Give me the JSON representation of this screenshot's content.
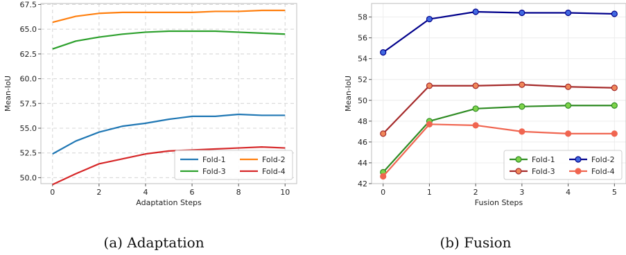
{
  "captions": [
    "(a) Adaptation",
    "(b) Fusion"
  ],
  "chart_data": [
    {
      "type": "line",
      "xlabel": "Adaptation Steps",
      "ylabel": "Mean-IoU",
      "x": [
        0,
        1,
        2,
        3,
        4,
        5,
        6,
        7,
        8,
        9,
        10
      ],
      "xlim": [
        -0.5,
        10.5
      ],
      "ylim": [
        49.4,
        67.6
      ],
      "xticks": [
        0,
        2,
        4,
        6,
        8,
        10
      ],
      "yticks": [
        50.0,
        52.5,
        55.0,
        57.5,
        60.0,
        62.5,
        65.0,
        67.5
      ],
      "xticklabels": [
        "0",
        "2",
        "4",
        "6",
        "8",
        "10"
      ],
      "yticklabels": [
        "50.0",
        "52.5",
        "55.0",
        "57.5",
        "60.0",
        "62.5",
        "65.0",
        "67.5"
      ],
      "grid": true,
      "grid_style": "dashed",
      "markers": false,
      "legend": "lower-right",
      "legend_columns": 2,
      "series": [
        {
          "name": "Fold-1",
          "color": "#1f77b4",
          "values": [
            52.4,
            53.7,
            54.6,
            55.2,
            55.5,
            55.9,
            56.2,
            56.2,
            56.4,
            56.3,
            56.3
          ]
        },
        {
          "name": "Fold-2",
          "color": "#ff7f0e",
          "values": [
            65.7,
            66.3,
            66.6,
            66.7,
            66.7,
            66.7,
            66.7,
            66.8,
            66.8,
            66.9,
            66.9
          ]
        },
        {
          "name": "Fold-3",
          "color": "#2ca02c",
          "values": [
            63.0,
            63.8,
            64.2,
            64.5,
            64.7,
            64.8,
            64.8,
            64.8,
            64.7,
            64.6,
            64.5
          ]
        },
        {
          "name": "Fold-4",
          "color": "#d62728",
          "values": [
            49.3,
            50.4,
            51.4,
            51.9,
            52.4,
            52.7,
            52.8,
            52.9,
            53.0,
            53.1,
            53.0
          ]
        }
      ]
    },
    {
      "type": "line",
      "xlabel": "Fusion Steps",
      "ylabel": "Mean-IoU",
      "x": [
        0,
        1,
        2,
        3,
        4,
        5
      ],
      "xlim": [
        -0.25,
        5.25
      ],
      "ylim": [
        42.0,
        59.3
      ],
      "xticks": [
        0,
        1,
        2,
        3,
        4,
        5
      ],
      "yticks": [
        42,
        44,
        46,
        48,
        50,
        52,
        54,
        56,
        58
      ],
      "xticklabels": [
        "0",
        "1",
        "2",
        "3",
        "4",
        "5"
      ],
      "yticklabels": [
        "42",
        "44",
        "46",
        "48",
        "50",
        "52",
        "54",
        "56",
        "58"
      ],
      "grid": true,
      "grid_style": "solid-light",
      "markers": true,
      "legend": "lower-right",
      "legend_columns": 2,
      "series": [
        {
          "name": "Fold-1",
          "color": "#2e8b22",
          "marker_color": "#7ed34a",
          "values": [
            43.1,
            48.0,
            49.2,
            49.4,
            49.5,
            49.5
          ]
        },
        {
          "name": "Fold-2",
          "color": "#00008b",
          "marker_color": "#4169e1",
          "values": [
            54.6,
            57.8,
            58.5,
            58.4,
            58.4,
            58.3
          ]
        },
        {
          "name": "Fold-3",
          "color": "#a52a2a",
          "marker_color": "#f0885a",
          "values": [
            46.8,
            51.4,
            51.4,
            51.5,
            51.3,
            51.2
          ]
        },
        {
          "name": "Fold-4",
          "color": "#f06550",
          "marker_color": "#f06550",
          "values": [
            42.7,
            47.7,
            47.6,
            47.0,
            46.8,
            46.8
          ]
        }
      ]
    }
  ]
}
